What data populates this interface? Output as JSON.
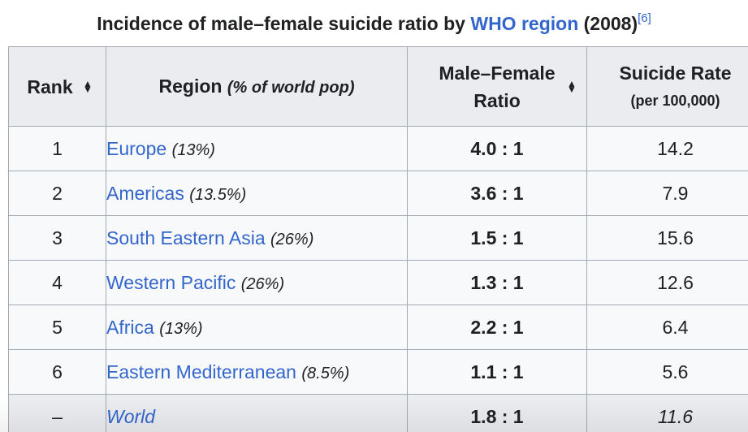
{
  "caption": {
    "before": "Incidence of male–female suicide ratio by ",
    "link": "WHO region",
    "after": " (2008)",
    "ref": "[6]"
  },
  "headers": {
    "rank": "Rank",
    "region": "Region",
    "region_sub": "(% of world pop)",
    "ratio_line1": "Male–Female",
    "ratio_line2": "Ratio",
    "rate_line1": "Suicide Rate",
    "rate_line2": "(per 100,000)"
  },
  "rows": [
    {
      "rank": "1",
      "region": "Europe",
      "pct": "(13%)",
      "ratio": "4.0 : 1",
      "rate": "14.2"
    },
    {
      "rank": "2",
      "region": "Americas",
      "pct": "(13.5%)",
      "ratio": "3.6 : 1",
      "rate": "7.9"
    },
    {
      "rank": "3",
      "region": "South Eastern Asia",
      "pct": "(26%)",
      "ratio": "1.5 : 1",
      "rate": "15.6"
    },
    {
      "rank": "4",
      "region": "Western Pacific",
      "pct": "(26%)",
      "ratio": "1.3 : 1",
      "rate": "12.6"
    },
    {
      "rank": "5",
      "region": "Africa",
      "pct": "(13%)",
      "ratio": "2.2 : 1",
      "rate": "6.4"
    },
    {
      "rank": "6",
      "region": "Eastern Mediterranean",
      "pct": "(8.5%)",
      "ratio": "1.1 : 1",
      "rate": "5.6"
    }
  ],
  "world": {
    "rank": "–",
    "region": "World",
    "ratio": "1.8 : 1",
    "rate": "11.6"
  },
  "colors": {
    "link": "#3366cc",
    "header_bg": "#eaecf0",
    "cell_bg": "#f8f9fa",
    "border": "#a2a9b1"
  },
  "icons": {
    "sort": "sort-toggle-icon"
  }
}
